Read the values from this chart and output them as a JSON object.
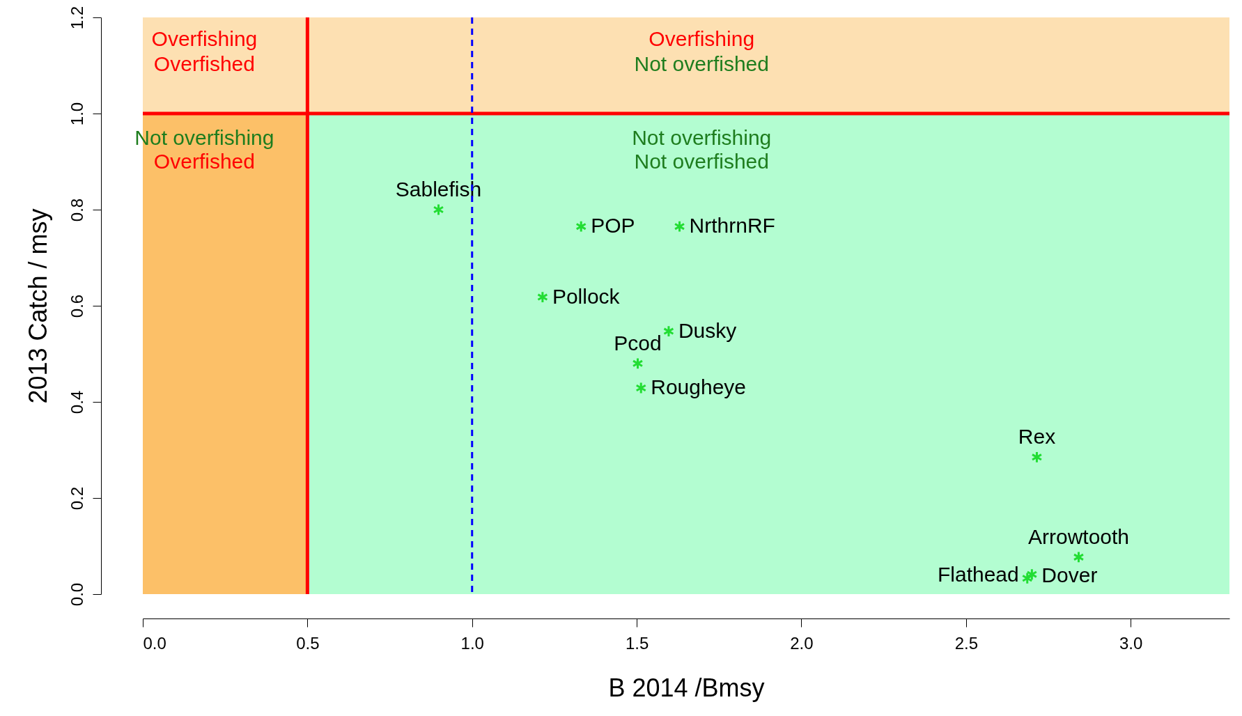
{
  "chart_data": {
    "type": "scatter",
    "xlabel": "B 2014 /Bmsy",
    "ylabel": "2013 Catch / msy",
    "x": [
      0.898,
      1.331,
      1.63,
      1.214,
      1.597,
      1.503,
      1.513,
      2.715,
      2.842,
      2.686,
      2.7
    ],
    "series": [
      {
        "color": "#22dd33",
        "values": [
          0.8,
          0.765,
          0.765,
          0.618,
          0.547,
          0.48,
          0.429,
          0.285,
          0.077,
          0.033,
          0.041
        ]
      }
    ],
    "marker": "cross",
    "xlim": [
      0,
      3.3
    ],
    "ylim": [
      0,
      1.2
    ],
    "xticks": [
      {
        "value": 0,
        "label": "0.0"
      },
      0.5,
      {
        "value": 1,
        "label": "1.0"
      },
      1.5,
      {
        "value": 2,
        "label": "2.0"
      },
      2.5,
      {
        "value": 3,
        "label": "3.0"
      }
    ],
    "yticks": [
      {
        "value": 0,
        "label": "0.0"
      },
      0.2,
      0.4,
      0.6,
      0.8,
      {
        "value": 1,
        "label": "1.0"
      },
      1.2
    ],
    "bands": [
      {
        "axis": "x",
        "from": 0.5,
        "to": 3.3,
        "color": "#b3fdd1"
      },
      {
        "axis": "x",
        "from": 0,
        "to": 0.5,
        "color": "#fcc068"
      },
      {
        "axis": "y",
        "from": 1.0,
        "to": 1.2,
        "color": "#fde0b2"
      }
    ],
    "ref_lines": [
      {
        "axis": "y",
        "value": 1.0,
        "color": "#ff0000",
        "line_style": "solid"
      },
      {
        "axis": "x",
        "value": 0.5,
        "color": "#ff0000",
        "line_style": "solid"
      },
      {
        "axis": "x",
        "value": 1.0,
        "color": "#0000ff",
        "line_style": "dashed"
      }
    ],
    "annotations": [
      "Overfishing",
      "Overfished",
      "Overfishing",
      "Not overfished",
      "Not overfishing",
      "Overfished",
      "Not overfishing",
      "Not overfished",
      {
        "text": "Sablefish",
        "x": 0.898,
        "y": 0.8
      },
      {
        "text": "POP",
        "x": 1.331,
        "y": 0.765
      },
      {
        "text": "NrthrnRF",
        "x": 1.63,
        "y": 0.765
      },
      {
        "text": "Pollock",
        "x": 1.214,
        "y": 0.618
      },
      {
        "text": "Dusky",
        "x": 1.597,
        "y": 0.547
      },
      {
        "text": "Pcod",
        "x": 1.503,
        "y": 0.48
      },
      {
        "text": "Rougheye",
        "x": 1.513,
        "y": 0.429
      },
      {
        "text": "Rex",
        "x": 2.715,
        "y": 0.285
      },
      {
        "text": "Arrowtooth",
        "x": 2.842,
        "y": 0.077
      },
      {
        "text": "Flathead",
        "x": 2.686,
        "y": 0.033
      },
      {
        "text": "Dover",
        "x": 2.7,
        "y": 0.041
      }
    ]
  }
}
